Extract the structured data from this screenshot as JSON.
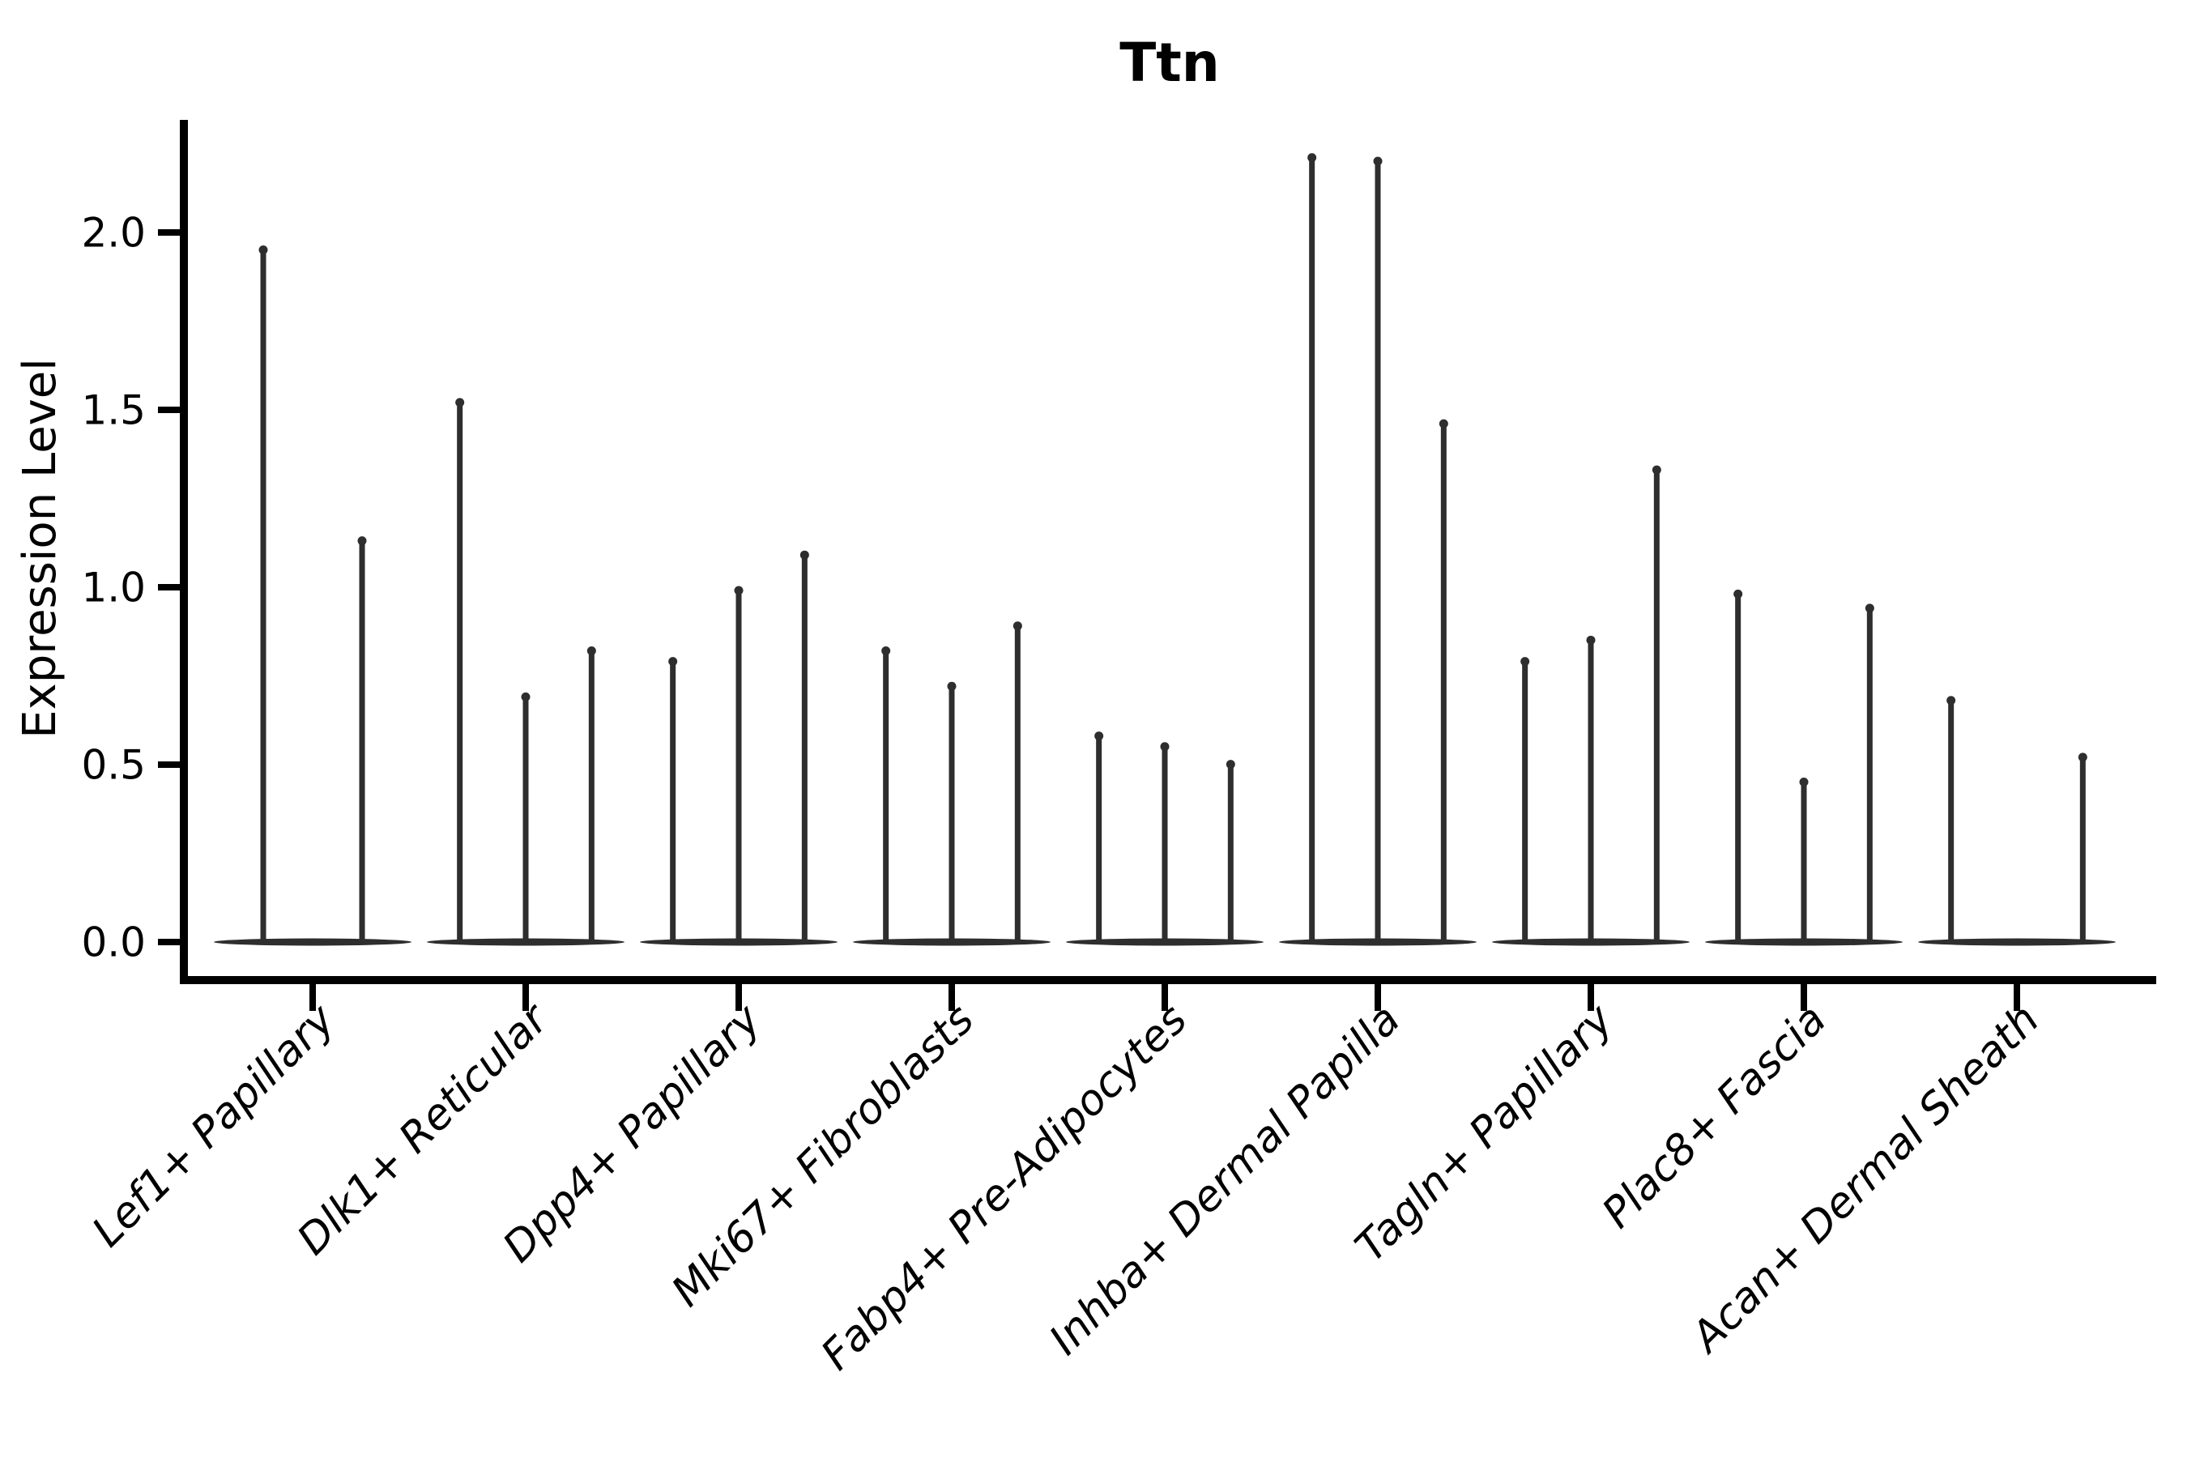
{
  "figure": {
    "title": "Ttn",
    "y_axis": {
      "label": "Expression Level",
      "tick_labels": [
        "0.0",
        "0.5",
        "1.0",
        "1.5",
        "2.0"
      ]
    },
    "x_axis": {
      "tick_labels": [
        "Lef1+ Papillary",
        "Dlk1+ Reticular",
        "Dpp4+ Papillary",
        "Mki67+ Fibroblasts",
        "Fabp4+ Pre-Adipocytes",
        "Inhba+ Dermal Papilla",
        "Tagln+ Papillary",
        "Plac8+ Fascia",
        "Acan+ Dermal Sheath"
      ]
    }
  },
  "chart_data": {
    "type": "violin",
    "title": "Ttn",
    "xlabel": "",
    "ylabel": "Expression Level",
    "yticks": [
      0.0,
      0.5,
      1.0,
      1.5,
      2.0
    ],
    "ylim": [
      -0.11,
      2.32
    ],
    "grid": false,
    "legend": null,
    "orientation": "vertical",
    "violin_style": "thin spikes; expression mass concentrated at 0 forms a flat lens-shaped baseline for each group; each spike rises to the maximum expression value of that sub-violin",
    "categories": [
      "Lef1+ Papillary",
      "Dlk1+ Reticular",
      "Dpp4+ Papillary",
      "Mki67+ Fibroblasts",
      "Fabp4+ Pre-Adipocytes",
      "Inhba+ Dermal Papilla",
      "Tagln+ Papillary",
      "Plac8+ Fascia",
      "Acan+ Dermal Sheath"
    ],
    "groups": [
      {
        "label": "Lef1+ Papillary",
        "violin_maxima": [
          1.96,
          1.14
        ]
      },
      {
        "label": "Dlk1+ Reticular",
        "violin_maxima": [
          1.53,
          0.7,
          0.83
        ]
      },
      {
        "label": "Dpp4+ Papillary",
        "violin_maxima": [
          0.8,
          1.0,
          1.1
        ]
      },
      {
        "label": "Mki67+ Fibroblasts",
        "violin_maxima": [
          0.83,
          0.73,
          0.9
        ]
      },
      {
        "label": "Fabp4+ Pre-Adipocytes",
        "violin_maxima": [
          0.59,
          0.56,
          0.51
        ]
      },
      {
        "label": "Inhba+ Dermal Papilla",
        "violin_maxima": [
          2.22,
          2.21,
          1.47
        ]
      },
      {
        "label": "Tagln+ Papillary",
        "violin_maxima": [
          0.8,
          0.86,
          1.34
        ]
      },
      {
        "label": "Plac8+ Fascia",
        "violin_maxima": [
          0.99,
          0.46,
          0.95
        ]
      },
      {
        "label": "Acan+ Dermal Sheath",
        "violin_maxima": [
          0.69,
          0.0,
          0.53
        ]
      }
    ],
    "colors": {
      "violin": "#2e2e2e",
      "axis": "#000000",
      "text": "#000000",
      "background": "#ffffff"
    }
  }
}
